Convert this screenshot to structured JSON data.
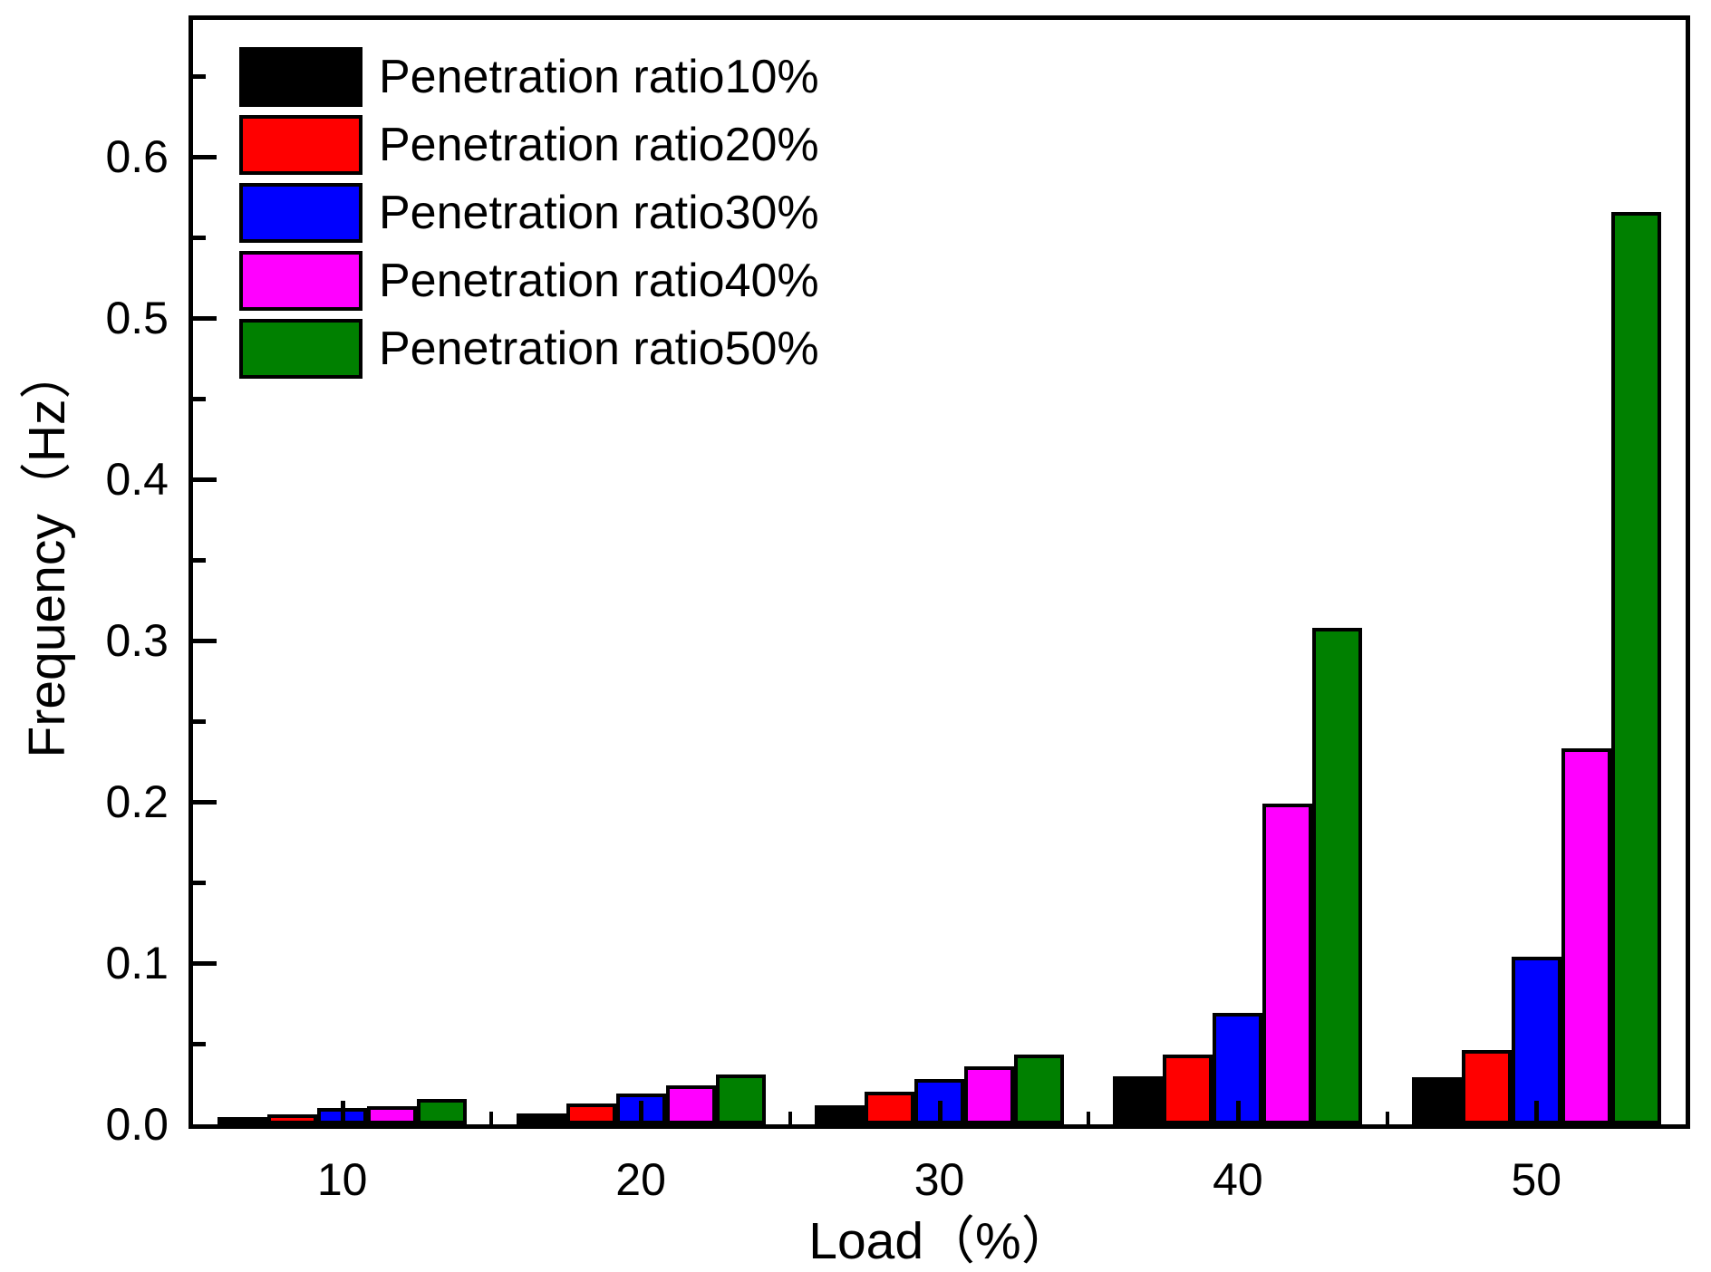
{
  "chart_data": {
    "type": "bar",
    "title": "",
    "xlabel": "Load（%）",
    "ylabel": "Frequency（Hz）",
    "categories": [
      "10",
      "20",
      "30",
      "40",
      "50"
    ],
    "series": [
      {
        "name": "Penetration ratio10%",
        "color": "#000000",
        "values": [
          0.004,
          0.007,
          0.012,
          0.03,
          0.029
        ]
      },
      {
        "name": "Penetration ratio20%",
        "color": "#FF0000",
        "values": [
          0.006,
          0.013,
          0.02,
          0.043,
          0.046
        ]
      },
      {
        "name": "Penetration ratio30%",
        "color": "#0000FF",
        "values": [
          0.01,
          0.019,
          0.028,
          0.069,
          0.104
        ]
      },
      {
        "name": "Penetration ratio40%",
        "color": "#FF00FF",
        "values": [
          0.011,
          0.024,
          0.036,
          0.199,
          0.233
        ]
      },
      {
        "name": "Penetration ratio50%",
        "color": "#008000",
        "values": [
          0.016,
          0.031,
          0.043,
          0.308,
          0.566
        ]
      }
    ],
    "y_tick_labels": [
      "0.0",
      "0.1",
      "0.2",
      "0.3",
      "0.4",
      "0.5",
      "0.6"
    ],
    "y_major_step": 0.1,
    "y_minor_step": 0.05,
    "ylim": [
      0,
      0.685
    ],
    "grid": "off",
    "legend_position": "upper-left",
    "bar_outline_color": "#000000",
    "axis_color": "#000000"
  }
}
